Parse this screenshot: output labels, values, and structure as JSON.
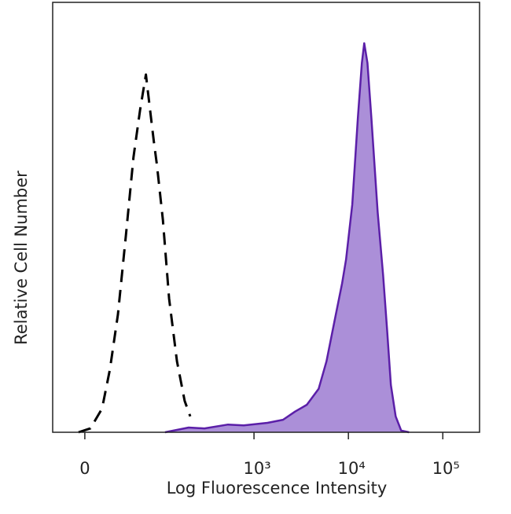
{
  "chart_data": {
    "type": "histogram-overlay",
    "xlabel": "Log Fluorescence Intensity",
    "ylabel": "Relative Cell Number",
    "xscale": "logicle",
    "xlim": [
      -28,
      245000
    ],
    "ylim": [
      0,
      100
    ],
    "xticks": [
      0,
      {
        "value": 1000,
        "label": "10³"
      },
      {
        "value": 10000,
        "label": "10⁴"
      },
      {
        "value": 100000,
        "label": "10⁵"
      }
    ],
    "series": [
      {
        "color": "#000000",
        "style": "dashed",
        "fill": false,
        "x": [
          -5,
          4.4,
          14,
          21,
          29,
          38,
          48,
          58,
          68,
          78,
          84,
          91,
          106,
          124,
          151,
          183,
          210
        ],
        "values": [
          0,
          0.9,
          5.5,
          14.6,
          27.4,
          45.7,
          64,
          75,
          83.2,
          73.1,
          67.6,
          62.2,
          49.4,
          31.1,
          16.5,
          7.3,
          3.7
        ]
      },
      {
        "color": "#5b1fa8",
        "fill_color": "#ab8fd8",
        "style": "solid",
        "fill": true,
        "x": [
          112,
          202,
          298,
          530,
          778,
          1390,
          2030,
          2720,
          3630,
          4840,
          5860,
          7080,
          8590,
          9450,
          11000,
          12600,
          13900,
          14700,
          15900,
          17500,
          20400,
          23300,
          25700,
          28200,
          31700,
          36200,
          43900
        ],
        "values": [
          0,
          1.1,
          0.9,
          1.8,
          1.6,
          2.2,
          2.9,
          4.8,
          6.4,
          10.1,
          16.5,
          25.6,
          34.7,
          40.2,
          53,
          73.1,
          85.9,
          90.5,
          85.9,
          73.1,
          51.2,
          36.6,
          23.8,
          11,
          3.7,
          0.4,
          0
        ]
      }
    ]
  }
}
